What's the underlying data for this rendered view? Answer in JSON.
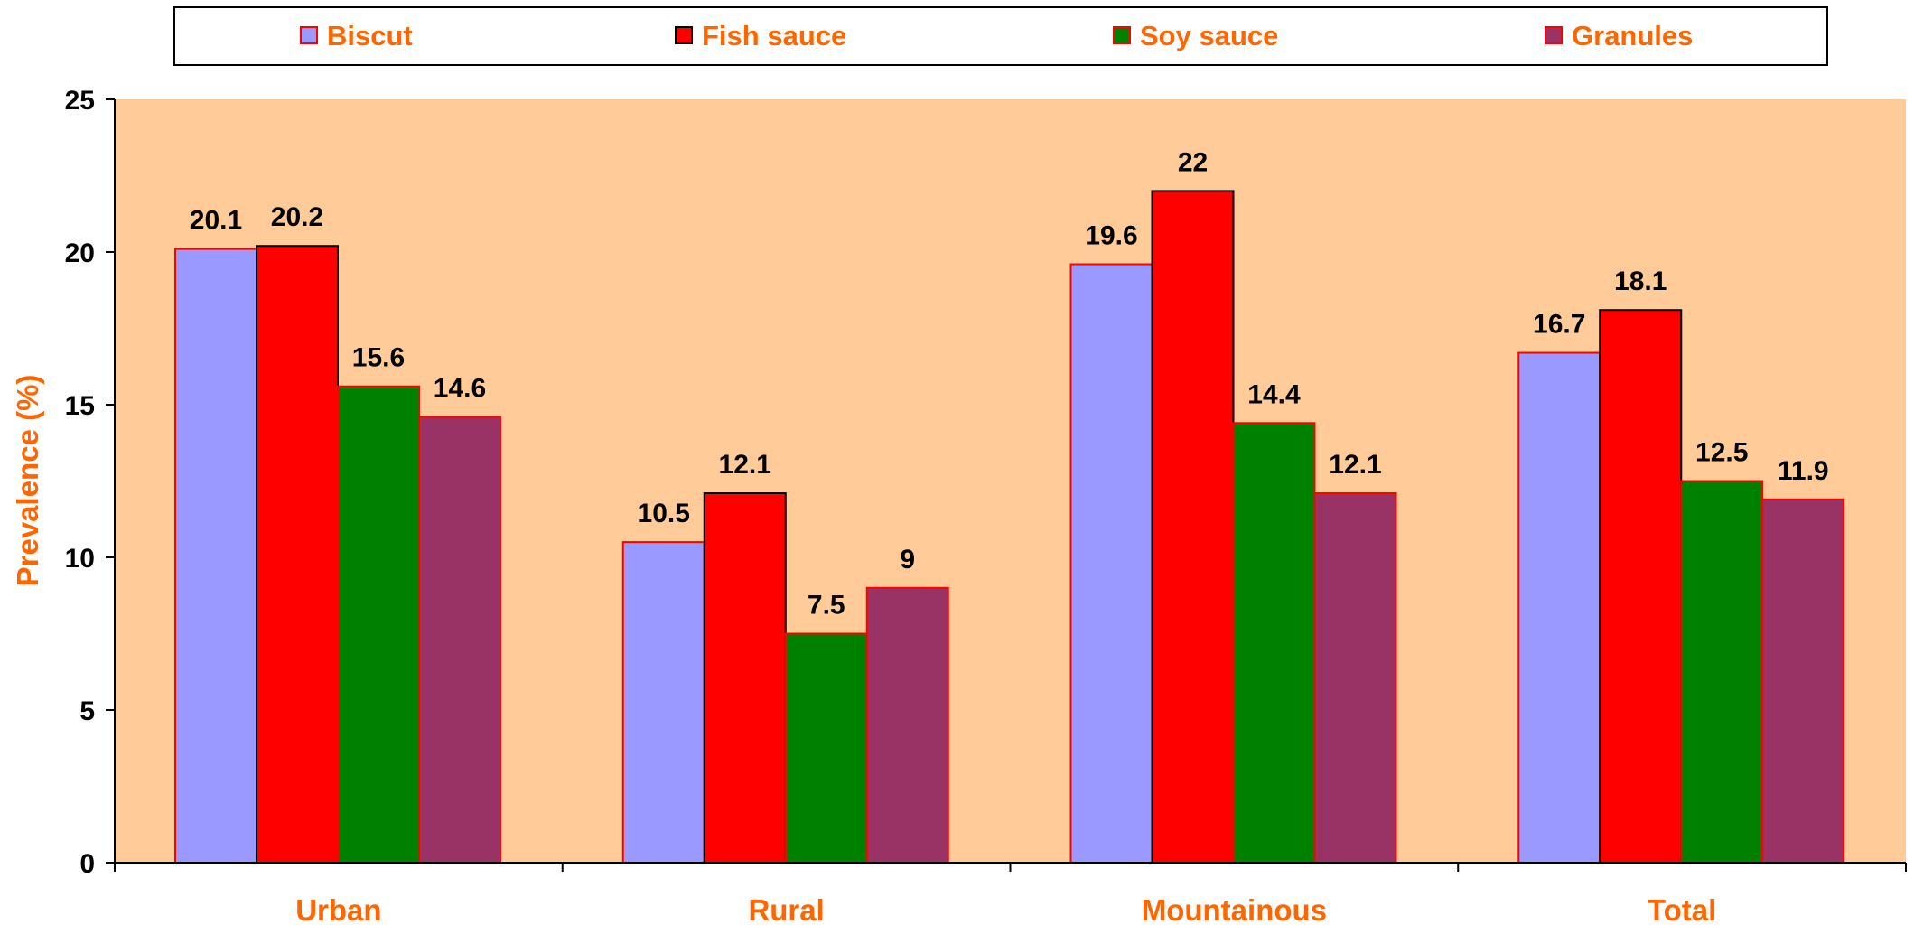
{
  "chart_data": {
    "type": "bar",
    "categories": [
      "Urban",
      "Rural",
      "Mountainous",
      "Total"
    ],
    "series": [
      {
        "name": "Biscut",
        "values": [
          20.1,
          10.5,
          19.6,
          16.7
        ],
        "color": "#9999FF",
        "stroke": "#FF0000"
      },
      {
        "name": "Fish sauce",
        "values": [
          20.2,
          12.1,
          22,
          18.1
        ],
        "color": "#FF0000",
        "stroke": "#000000"
      },
      {
        "name": "Soy sauce",
        "values": [
          15.6,
          7.5,
          14.4,
          12.5
        ],
        "color": "#008000",
        "stroke": "#FF0000"
      },
      {
        "name": "Granules",
        "values": [
          14.6,
          9,
          12.1,
          11.9
        ],
        "color": "#993366",
        "stroke": "#FF0000"
      }
    ],
    "data_labels": [
      [
        "20.1",
        "20.2",
        "15.6",
        "14.6"
      ],
      [
        "10.5",
        "12.1",
        "7.5",
        "9"
      ],
      [
        "19.6",
        "22",
        "14.4",
        "12.1"
      ],
      [
        "16.7",
        "18.1",
        "12.5",
        "11.9"
      ]
    ],
    "yticks": [
      "0",
      "5",
      "10",
      "15",
      "20",
      "25"
    ],
    "ylim": [
      0,
      25
    ],
    "ylabel": "Prevalence (%)",
    "xlabel": "",
    "title": "",
    "legend_position": "top",
    "grid": false,
    "colors": {
      "plot_background": "#FFCC99",
      "axis_label": "#FF6600",
      "category_label": "#FF6600",
      "legend_text": "#FF6600",
      "text": "#000000"
    }
  }
}
